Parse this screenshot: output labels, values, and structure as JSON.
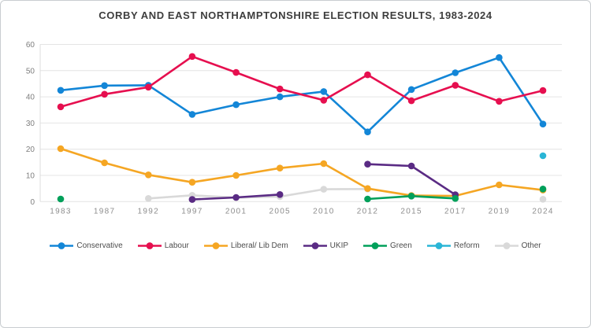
{
  "chart_data": {
    "type": "line",
    "title": "CORBY AND EAST NORTHAMPTONSHIRE ELECTION RESULTS, 1983-2024",
    "xlabel": "",
    "ylabel": "",
    "ylim": [
      0,
      60
    ],
    "yticks": [
      0,
      10,
      20,
      30,
      40,
      50,
      60
    ],
    "grid": "horizontal",
    "legend_position": "bottom",
    "categories": [
      "1983",
      "1987",
      "1992",
      "1997",
      "2001",
      "2005",
      "2010",
      "2012",
      "2015",
      "2017",
      "2019",
      "2024"
    ],
    "series": [
      {
        "name": "Conservative",
        "color": "#1386d7",
        "values": [
          42.5,
          44.3,
          44.4,
          33.3,
          37.0,
          40.0,
          42.0,
          26.6,
          42.8,
          49.2,
          55.0,
          29.6
        ]
      },
      {
        "name": "Labour",
        "color": "#e60f4f",
        "values": [
          36.2,
          41.0,
          43.7,
          55.4,
          49.3,
          43.0,
          38.7,
          48.4,
          38.5,
          44.4,
          38.3,
          42.4
        ]
      },
      {
        "name": "Liberal/ Lib Dem",
        "color": "#f5a623",
        "values": [
          20.2,
          14.8,
          10.2,
          7.4,
          10.0,
          12.8,
          14.5,
          5.0,
          2.3,
          2.2,
          6.4,
          4.4
        ]
      },
      {
        "name": "UKIP",
        "color": "#5a2b84",
        "values": [
          null,
          null,
          null,
          0.8,
          1.6,
          2.7,
          null,
          14.3,
          13.6,
          2.6,
          null,
          null
        ]
      },
      {
        "name": "Green",
        "color": "#00a05a",
        "values": [
          1.0,
          null,
          null,
          null,
          null,
          null,
          null,
          1.0,
          2.1,
          1.2,
          null,
          4.8
        ]
      },
      {
        "name": "Reform",
        "color": "#2ab5d6",
        "values": [
          null,
          null,
          null,
          null,
          null,
          null,
          null,
          null,
          null,
          null,
          null,
          17.5
        ]
      },
      {
        "name": "Other",
        "color": "#d9d9d9",
        "values": [
          null,
          null,
          1.2,
          2.4,
          1.5,
          1.9,
          4.7,
          4.8,
          null,
          null,
          null,
          0.9
        ]
      }
    ]
  }
}
